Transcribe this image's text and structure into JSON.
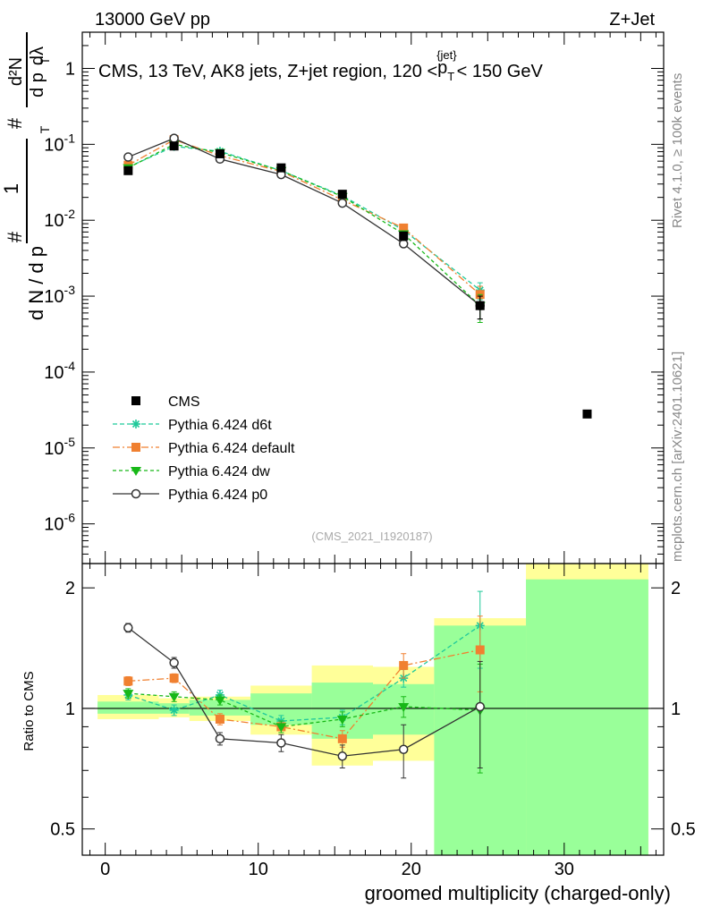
{
  "header": {
    "left": "13000 GeV pp",
    "right": "Z+Jet"
  },
  "side_labels": {
    "rivet": "Rivet 4.1.0, ≥ 100k events",
    "mcplots": "mcplots.cern.ch [arXiv:2401.10621]"
  },
  "chart_data": {
    "type": "scatter",
    "title_parts": {
      "prefix": "CMS, 13 TeV, AK8 jets, Z+jet region, 120 <",
      "p": "p",
      "sub": "T",
      "sup": "{jet}",
      "suffix": "< 150 GeV"
    },
    "analysis_tag": "(CMS_2021_I1920187)",
    "ylabel_parts": {
      "a": "#",
      "b": "1",
      "c": "d N / d p",
      "d": "T",
      "e": "d²N",
      "f": "d p",
      "g": "dλ"
    },
    "xlabel": "groomed multiplicity (charged-only)",
    "ratio_ylabel": "Ratio to CMS",
    "xlim": [
      -1.5,
      36.5
    ],
    "main": {
      "yscale": "log",
      "ylim": [
        3e-07,
        3
      ],
      "tick_labels": [
        {
          "v": 1,
          "base": "1",
          "exp": ""
        },
        {
          "v": 0.1,
          "base": "10",
          "exp": "-1"
        },
        {
          "v": 0.01,
          "base": "10",
          "exp": "-2"
        },
        {
          "v": 0.001,
          "base": "10",
          "exp": "-3"
        },
        {
          "v": 0.0001,
          "base": "10",
          "exp": "-4"
        },
        {
          "v": 1e-05,
          "base": "10",
          "exp": "-5"
        },
        {
          "v": 1e-06,
          "base": "10",
          "exp": "-6"
        }
      ]
    },
    "ratio": {
      "yscale": "log",
      "ylim": [
        0.43,
        2.3
      ],
      "ticks": [
        0.5,
        1,
        2
      ],
      "tick_labels": [
        "0.5",
        "1",
        "2"
      ],
      "bands": [
        {
          "x0": -0.5,
          "x1": 3.5,
          "g": [
            0.97,
            1.04
          ],
          "y": [
            0.94,
            1.08
          ]
        },
        {
          "x0": 3.5,
          "x1": 5.5,
          "g": [
            0.97,
            1.03
          ],
          "y": [
            0.95,
            1.06
          ]
        },
        {
          "x0": 5.5,
          "x1": 9.5,
          "g": [
            0.96,
            1.05
          ],
          "y": [
            0.93,
            1.07
          ]
        },
        {
          "x0": 9.5,
          "x1": 13.5,
          "g": [
            0.91,
            1.09
          ],
          "y": [
            0.86,
            1.14
          ]
        },
        {
          "x0": 13.5,
          "x1": 17.5,
          "g": [
            0.84,
            1.16
          ],
          "y": [
            0.72,
            1.28
          ]
        },
        {
          "x0": 17.5,
          "x1": 21.5,
          "g": [
            0.86,
            1.15
          ],
          "y": [
            0.74,
            1.27
          ]
        },
        {
          "x0": 21.5,
          "x1": 27.5,
          "g": [
            0.43,
            1.61
          ],
          "y": [
            0.43,
            1.68
          ]
        },
        {
          "x0": 27.5,
          "x1": 35.5,
          "g": [
            0.43,
            2.1
          ],
          "y": [
            0.43,
            2.3
          ]
        }
      ]
    },
    "x_ticks": [
      0,
      10,
      20,
      30
    ],
    "x_tick_labels": [
      "0",
      "10",
      "20",
      "30"
    ],
    "series": [
      {
        "name": "CMS",
        "color": "#000000",
        "marker": "square",
        "dash": "none",
        "x": [
          1.5,
          4.5,
          7.5,
          11.5,
          15.5,
          19.5,
          24.5,
          31.5
        ],
        "y": [
          0.045,
          0.095,
          0.075,
          0.049,
          0.022,
          0.0062,
          0.00075,
          2.8e-05
        ],
        "yerr": [
          0.003,
          0.005,
          0.004,
          0.003,
          0.002,
          0.0008,
          0.00025,
          0.0
        ],
        "ratio": null,
        "ratio_err": null
      },
      {
        "name": "Pythia 6.424 d6t",
        "color": "#1fc99a",
        "marker": "star",
        "dash": "5,3",
        "x": [
          1.5,
          4.5,
          7.5,
          11.5,
          15.5,
          19.5,
          24.5
        ],
        "y": [
          0.05,
          0.094,
          0.081,
          0.045,
          0.021,
          0.0074,
          0.0012
        ],
        "yerr": [
          0.002,
          0.003,
          0.003,
          0.002,
          0.0012,
          0.0006,
          0.0003
        ],
        "ratio": [
          1.08,
          0.99,
          1.08,
          0.93,
          0.95,
          1.19,
          1.61
        ],
        "ratio_err": [
          0.03,
          0.03,
          0.03,
          0.03,
          0.04,
          0.06,
          0.35
        ]
      },
      {
        "name": "Pythia 6.424 default",
        "color": "#f08030",
        "marker": "square",
        "dash": "8,3,2,3",
        "x": [
          1.5,
          4.5,
          7.5,
          11.5,
          15.5,
          19.5,
          24.5
        ],
        "y": [
          0.053,
          0.115,
          0.071,
          0.044,
          0.0185,
          0.0079,
          0.00105
        ],
        "yerr": [
          0.002,
          0.004,
          0.003,
          0.002,
          0.0012,
          0.0006,
          0.0003
        ],
        "ratio": [
          1.17,
          1.19,
          0.94,
          0.9,
          0.84,
          1.28,
          1.4
        ],
        "ratio_err": [
          0.03,
          0.03,
          0.03,
          0.03,
          0.04,
          0.09,
          0.3
        ]
      },
      {
        "name": "Pythia 6.424 dw",
        "color": "#18b818",
        "marker": "triangle-down",
        "dash": "4,3",
        "x": [
          1.5,
          4.5,
          7.5,
          11.5,
          15.5,
          19.5,
          24.5
        ],
        "y": [
          0.049,
          0.1,
          0.078,
          0.045,
          0.0205,
          0.0066,
          0.00075
        ],
        "yerr": [
          0.002,
          0.003,
          0.003,
          0.002,
          0.0012,
          0.0005,
          0.0003
        ],
        "ratio": [
          1.09,
          1.07,
          1.05,
          0.9,
          0.94,
          1.01,
          0.99
        ],
        "ratio_err": [
          0.03,
          0.03,
          0.03,
          0.03,
          0.04,
          0.06,
          0.3
        ]
      },
      {
        "name": "Pythia 6.424 p0",
        "color": "#333333",
        "marker": "circle-open",
        "dash": "none",
        "x": [
          1.5,
          4.5,
          7.5,
          11.5,
          15.5,
          19.5,
          24.5
        ],
        "y": [
          0.068,
          0.12,
          0.064,
          0.04,
          0.0168,
          0.0049,
          0.00075
        ],
        "yerr": [
          0.002,
          0.004,
          0.003,
          0.002,
          0.0012,
          0.0005,
          0.00025
        ],
        "ratio": [
          1.59,
          1.3,
          0.84,
          0.82,
          0.76,
          0.79,
          1.01
        ],
        "ratio_err": [
          0.04,
          0.04,
          0.03,
          0.04,
          0.05,
          0.12,
          0.3
        ]
      }
    ]
  }
}
